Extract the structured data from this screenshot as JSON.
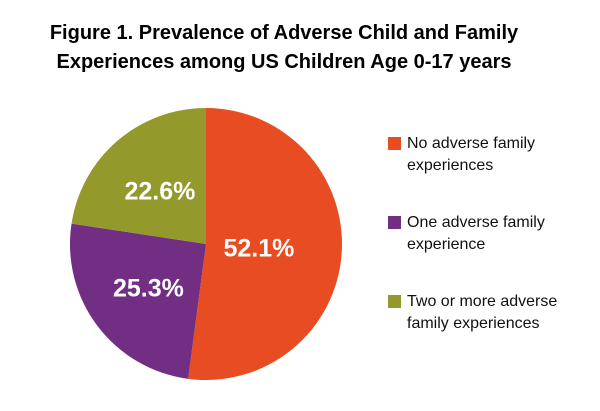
{
  "figure": {
    "title_line1": "Figure 1. Prevalence of Adverse Child and Family",
    "title_line2": "Experiences among US Children Age 0-17 years"
  },
  "chart_data": {
    "type": "pie",
    "title": "Figure 1. Prevalence of Adverse Child and Family Experiences among US Children Age 0-17 years",
    "slices": [
      {
        "label": "No adverse family experiences",
        "value": 52.1,
        "display": "52.1%",
        "color": "#E84C22"
      },
      {
        "label": "One adverse family experience",
        "value": 25.3,
        "display": "25.3%",
        "color": "#722E82"
      },
      {
        "label": "Two or more adverse family experiences",
        "value": 22.6,
        "display": "22.6%",
        "color": "#94992C"
      }
    ],
    "start_angle_deg": 0,
    "direction": "clockwise",
    "data_labels": "percent-inside",
    "label_color": "#FFFFFF",
    "label_radius_fractions": [
      0.39,
      0.53,
      0.52
    ],
    "legend_position": "right",
    "background": "#FFFFFF"
  },
  "legend": {
    "items": [
      {
        "label": "No adverse family experiences",
        "color": "#E84C22"
      },
      {
        "label": "One adverse family experience",
        "color": "#722E82"
      },
      {
        "label": "Two or more adverse family experiences",
        "color": "#94992C"
      }
    ]
  }
}
